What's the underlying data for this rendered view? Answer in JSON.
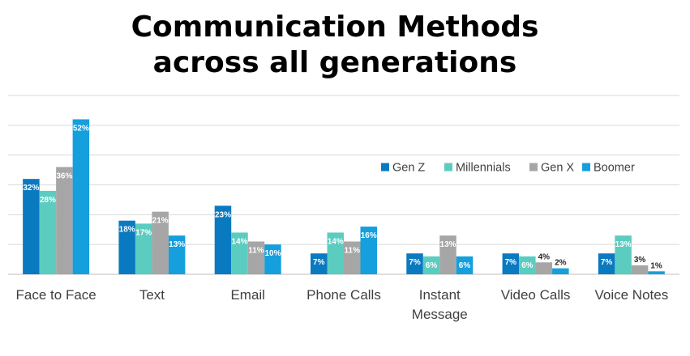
{
  "chart_data": {
    "type": "bar",
    "title": "Communication Methods across all generations",
    "title_lines": [
      "Communication Methods",
      "across all generations"
    ],
    "categories": [
      [
        "Face to Face"
      ],
      [
        "Text"
      ],
      [
        "Email"
      ],
      [
        "Phone Calls"
      ],
      [
        "Instant",
        "Message"
      ],
      [
        "Video Calls"
      ],
      [
        "Voice Notes"
      ]
    ],
    "series": [
      {
        "name": "Gen Z",
        "color": "#0A7AC0",
        "values": [
          32,
          18,
          23,
          7,
          7,
          7,
          7
        ]
      },
      {
        "name": "Millennials",
        "color": "#5BCCC0",
        "values": [
          28,
          17,
          14,
          14,
          6,
          6,
          13
        ]
      },
      {
        "name": "Gen X",
        "color": "#A6A6A6",
        "values": [
          36,
          21,
          11,
          11,
          13,
          4,
          3
        ]
      },
      {
        "name": "Boomer",
        "color": "#159FDC",
        "values": [
          52,
          13,
          10,
          16,
          6,
          2,
          1
        ]
      }
    ],
    "value_suffix": "%",
    "ylim": [
      0,
      60
    ],
    "grid": true,
    "legend_position": "upper-right"
  }
}
